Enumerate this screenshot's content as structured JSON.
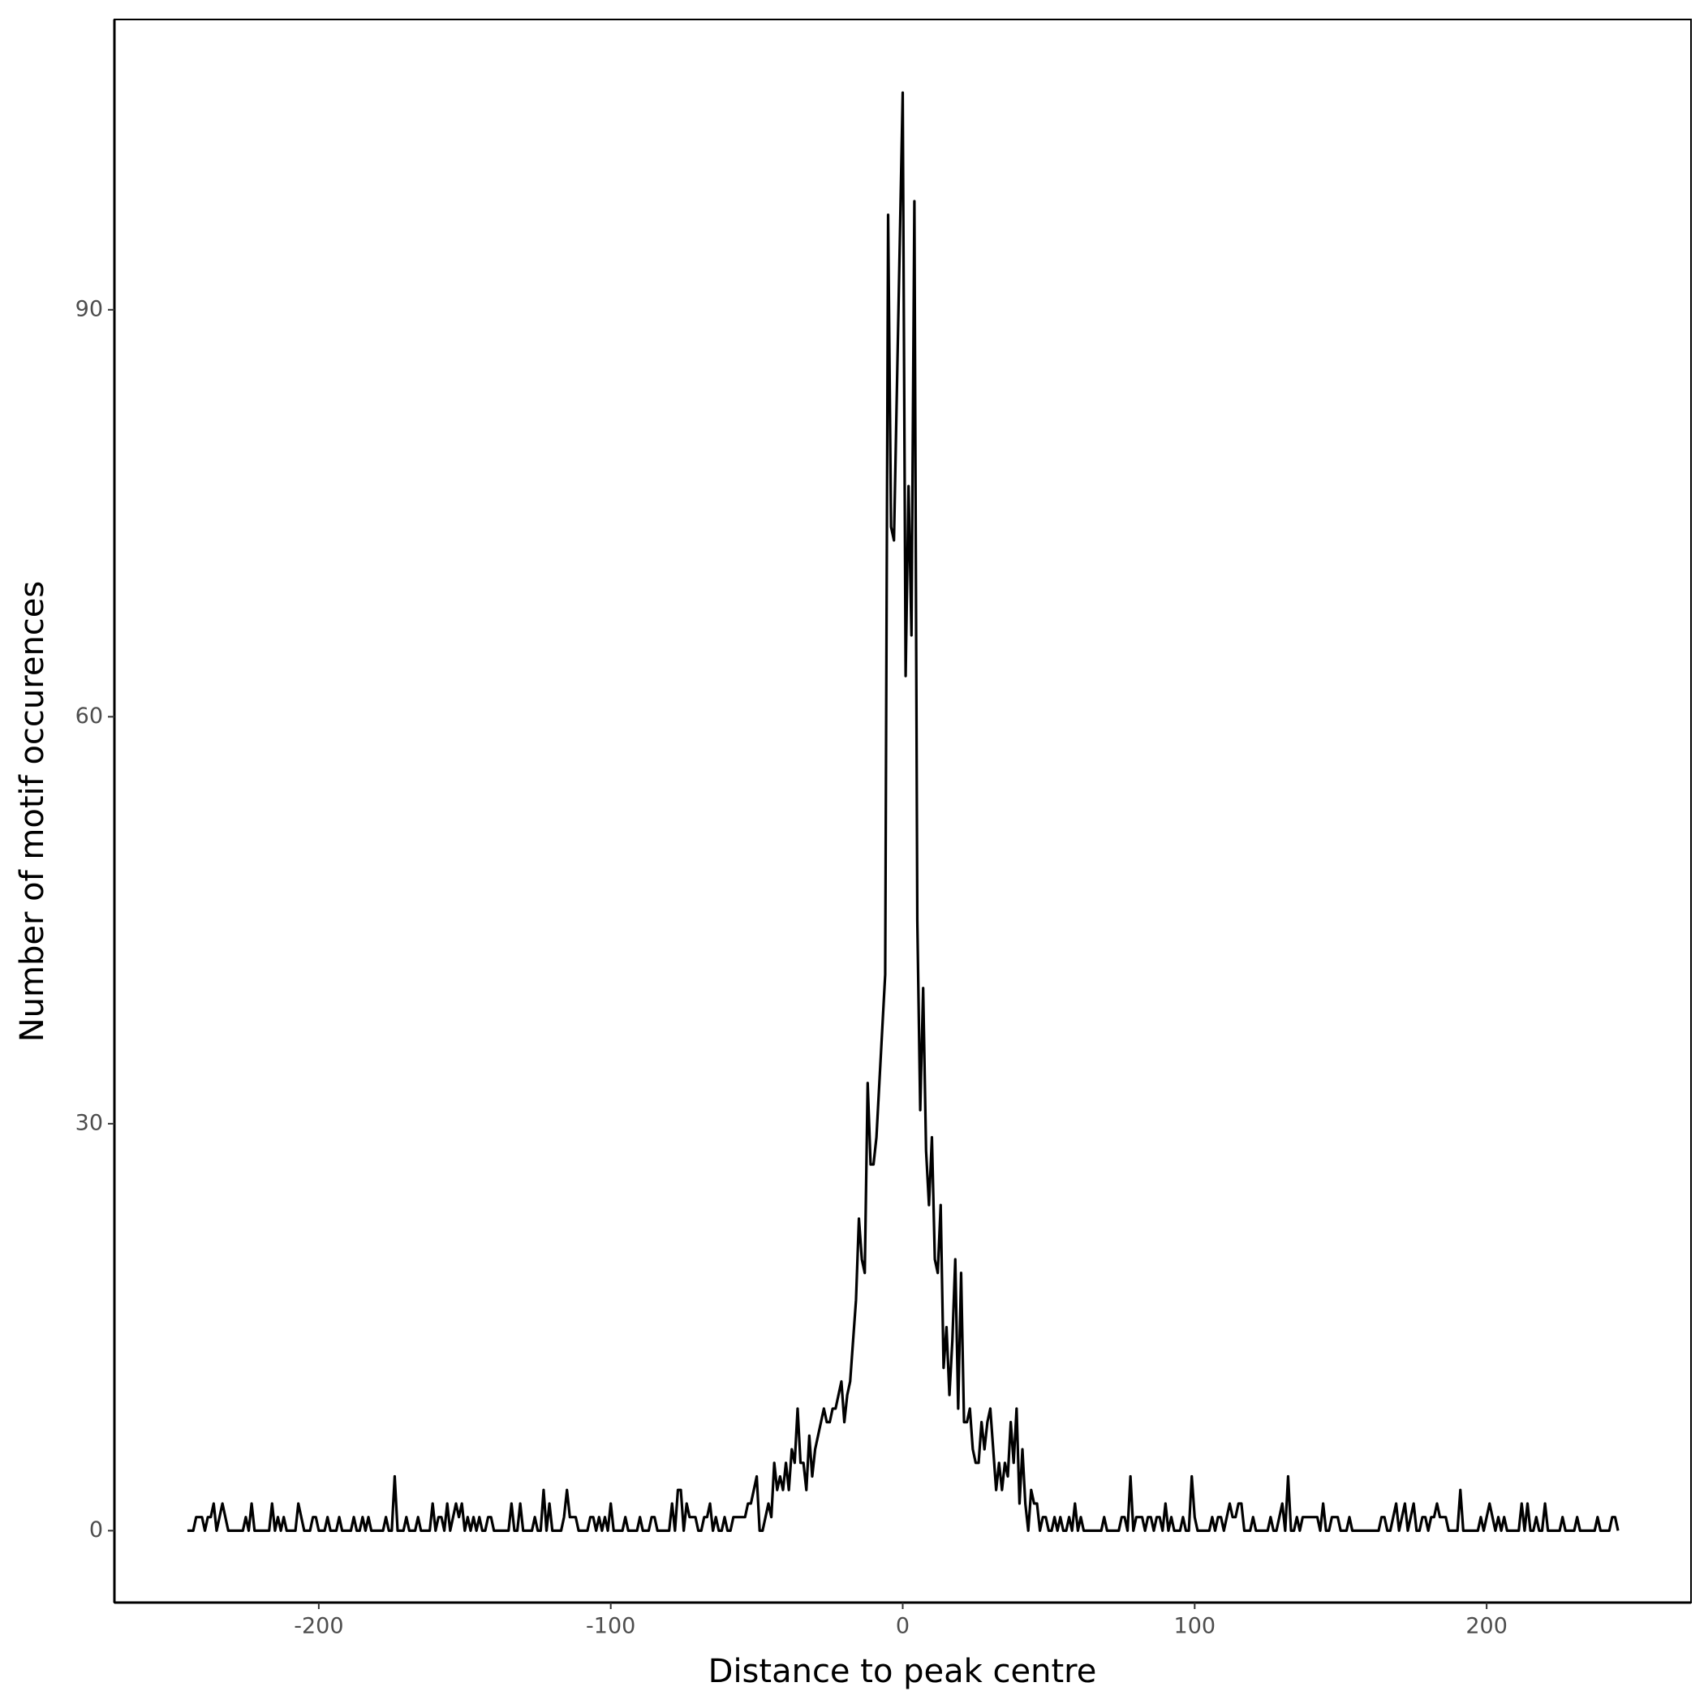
{
  "chart_data": {
    "type": "line",
    "x_label": "Distance to peak centre",
    "y_label": "Number of motif occurences",
    "xlim": [
      -270,
      270
    ],
    "ylim": [
      -5.3,
      111.4
    ],
    "xticks": [
      -200,
      -100,
      0,
      100,
      200
    ],
    "yticks": [
      0,
      30,
      60,
      90
    ],
    "series": [
      {
        "color": "#000000",
        "x": [
          -245,
          -244,
          -243,
          -242,
          -241,
          -240,
          -239,
          -238,
          -237,
          -236,
          -235,
          -234,
          -233,
          -232,
          -231,
          -230,
          -229,
          -228,
          -227,
          -226,
          -225,
          -224,
          -223,
          -222,
          -221,
          -220,
          -219,
          -218,
          -217,
          -216,
          -215,
          -214,
          -213,
          -212,
          -211,
          -210,
          -209,
          -208,
          -207,
          -206,
          -205,
          -204,
          -203,
          -202,
          -201,
          -200,
          -199,
          -198,
          -197,
          -196,
          -195,
          -194,
          -193,
          -192,
          -191,
          -190,
          -189,
          -188,
          -187,
          -186,
          -185,
          -184,
          -183,
          -182,
          -181,
          -180,
          -179,
          -178,
          -177,
          -176,
          -175,
          -174,
          -173,
          -172,
          -171,
          -170,
          -169,
          -168,
          -167,
          -166,
          -165,
          -164,
          -163,
          -162,
          -161,
          -160,
          -159,
          -158,
          -157,
          -156,
          -155,
          -154,
          -153,
          -152,
          -151,
          -150,
          -149,
          -148,
          -147,
          -146,
          -145,
          -144,
          -143,
          -142,
          -141,
          -140,
          -139,
          -138,
          -137,
          -136,
          -135,
          -134,
          -133,
          -132,
          -131,
          -130,
          -129,
          -128,
          -127,
          -126,
          -125,
          -124,
          -123,
          -122,
          -121,
          -120,
          -119,
          -118,
          -117,
          -116,
          -115,
          -114,
          -113,
          -112,
          -111,
          -110,
          -109,
          -108,
          -107,
          -106,
          -105,
          -104,
          -103,
          -102,
          -101,
          -100,
          -99,
          -98,
          -97,
          -96,
          -95,
          -94,
          -93,
          -92,
          -91,
          -90,
          -89,
          -88,
          -87,
          -86,
          -85,
          -84,
          -83,
          -82,
          -81,
          -80,
          -79,
          -78,
          -77,
          -76,
          -75,
          -74,
          -73,
          -72,
          -71,
          -70,
          -69,
          -68,
          -67,
          -66,
          -65,
          -64,
          -63,
          -62,
          -61,
          -60,
          -59,
          -58,
          -57,
          -56,
          -55,
          -54,
          -53,
          -52,
          -51,
          -50,
          -49,
          -48,
          -47,
          -46,
          -45,
          -44,
          -43,
          -42,
          -41,
          -40,
          -39,
          -38,
          -37,
          -36,
          -35,
          -34,
          -33,
          -32,
          -31,
          -30,
          -29,
          -28,
          -27,
          -26,
          -25,
          -24,
          -23,
          -22,
          -21,
          -20,
          -19,
          -18,
          -17,
          -16,
          -15,
          -14,
          -13,
          -12,
          -11,
          -10,
          -9,
          -8,
          -7,
          -6,
          -5,
          -4,
          -3,
          -2,
          -1,
          0,
          1,
          2,
          3,
          4,
          5,
          6,
          7,
          8,
          9,
          10,
          11,
          12,
          13,
          14,
          15,
          16,
          17,
          18,
          19,
          20,
          21,
          22,
          23,
          24,
          25,
          26,
          27,
          28,
          29,
          30,
          31,
          32,
          33,
          34,
          35,
          36,
          37,
          38,
          39,
          40,
          41,
          42,
          43,
          44,
          45,
          46,
          47,
          48,
          49,
          50,
          51,
          52,
          53,
          54,
          55,
          56,
          57,
          58,
          59,
          60,
          61,
          62,
          63,
          64,
          65,
          66,
          67,
          68,
          69,
          70,
          71,
          72,
          73,
          74,
          75,
          76,
          77,
          78,
          79,
          80,
          81,
          82,
          83,
          84,
          85,
          86,
          87,
          88,
          89,
          90,
          91,
          92,
          93,
          94,
          95,
          96,
          97,
          98,
          99,
          100,
          101,
          102,
          103,
          104,
          105,
          106,
          107,
          108,
          109,
          110,
          111,
          112,
          113,
          114,
          115,
          116,
          117,
          118,
          119,
          120,
          121,
          122,
          123,
          124,
          125,
          126,
          127,
          128,
          129,
          130,
          131,
          132,
          133,
          134,
          135,
          136,
          137,
          138,
          139,
          140,
          141,
          142,
          143,
          144,
          145,
          146,
          147,
          148,
          149,
          150,
          151,
          152,
          153,
          154,
          155,
          156,
          157,
          158,
          159,
          160,
          161,
          162,
          163,
          164,
          165,
          166,
          167,
          168,
          169,
          170,
          171,
          172,
          173,
          174,
          175,
          176,
          177,
          178,
          179,
          180,
          181,
          182,
          183,
          184,
          185,
          186,
          187,
          188,
          189,
          190,
          191,
          192,
          193,
          194,
          195,
          196,
          197,
          198,
          199,
          200,
          201,
          202,
          203,
          204,
          205,
          206,
          207,
          208,
          209,
          210,
          211,
          212,
          213,
          214,
          215,
          216,
          217,
          218,
          219,
          220,
          221,
          222,
          223,
          224,
          225,
          226,
          227,
          228,
          229,
          230,
          231,
          232,
          233,
          234,
          235,
          236,
          237,
          238,
          239,
          240,
          241,
          242,
          243,
          244,
          245
        ],
        "values": [
          0,
          0,
          0,
          1,
          1,
          1,
          0,
          1,
          1,
          2,
          0,
          1,
          2,
          1,
          0,
          0,
          0,
          0,
          0,
          0,
          1,
          0,
          2,
          0,
          0,
          0,
          0,
          0,
          0,
          2,
          0,
          1,
          0,
          1,
          0,
          0,
          0,
          0,
          2,
          1,
          0,
          0,
          0,
          1,
          1,
          0,
          0,
          0,
          1,
          0,
          0,
          0,
          1,
          0,
          0,
          0,
          0,
          1,
          0,
          0,
          1,
          0,
          1,
          0,
          0,
          0,
          0,
          0,
          1,
          0,
          0,
          4,
          0,
          0,
          0,
          1,
          0,
          0,
          0,
          1,
          0,
          0,
          0,
          0,
          2,
          0,
          1,
          1,
          0,
          2,
          0,
          1,
          2,
          1,
          2,
          0,
          1,
          0,
          1,
          0,
          1,
          0,
          0,
          1,
          1,
          0,
          0,
          0,
          0,
          0,
          0,
          2,
          0,
          0,
          2,
          0,
          0,
          0,
          0,
          1,
          0,
          0,
          3,
          0,
          2,
          0,
          0,
          0,
          0,
          1,
          3,
          1,
          1,
          1,
          0,
          0,
          0,
          0,
          1,
          1,
          0,
          1,
          0,
          1,
          0,
          2,
          0,
          0,
          0,
          0,
          1,
          0,
          0,
          0,
          0,
          1,
          0,
          0,
          0,
          1,
          1,
          0,
          0,
          0,
          0,
          0,
          2,
          0,
          3,
          3,
          0,
          2,
          1,
          1,
          1,
          0,
          0,
          1,
          1,
          2,
          0,
          1,
          0,
          0,
          1,
          0,
          0,
          1,
          1,
          1,
          1,
          1,
          2,
          2,
          3,
          4,
          0,
          0,
          1,
          2,
          1,
          5,
          3,
          4,
          3,
          5,
          3,
          6,
          5,
          9,
          5,
          5,
          3,
          7,
          4,
          6,
          7,
          8,
          9,
          8,
          8,
          9,
          9,
          10,
          11,
          8,
          10,
          11,
          14,
          17,
          23,
          20,
          19,
          33,
          27,
          27,
          29,
          33,
          37,
          41,
          97,
          74,
          73,
          84,
          95,
          106,
          63,
          77,
          66,
          98,
          45,
          31,
          40,
          28,
          24,
          29,
          20,
          19,
          24,
          12,
          15,
          10,
          14,
          20,
          9,
          19,
          8,
          8,
          9,
          6,
          5,
          5,
          8,
          6,
          8,
          9,
          6,
          3,
          5,
          3,
          5,
          4,
          8,
          5,
          9,
          2,
          6,
          2,
          0,
          3,
          2,
          2,
          0,
          1,
          1,
          0,
          0,
          1,
          0,
          1,
          0,
          0,
          1,
          0,
          2,
          0,
          1,
          0,
          0,
          0,
          0,
          0,
          0,
          0,
          1,
          0,
          0,
          0,
          0,
          0,
          1,
          1,
          0,
          4,
          0,
          1,
          1,
          1,
          0,
          1,
          1,
          0,
          1,
          1,
          0,
          2,
          0,
          1,
          0,
          0,
          0,
          1,
          0,
          0,
          4,
          1,
          0,
          0,
          0,
          0,
          0,
          1,
          0,
          1,
          1,
          0,
          1,
          2,
          1,
          1,
          2,
          2,
          0,
          0,
          0,
          1,
          0,
          0,
          0,
          0,
          0,
          1,
          0,
          0,
          1,
          2,
          0,
          4,
          0,
          0,
          1,
          0,
          1,
          1,
          1,
          1,
          1,
          1,
          0,
          2,
          0,
          0,
          1,
          1,
          1,
          0,
          0,
          0,
          1,
          0,
          0,
          0,
          0,
          0,
          0,
          0,
          0,
          0,
          0,
          1,
          1,
          0,
          0,
          1,
          2,
          0,
          1,
          2,
          0,
          1,
          2,
          0,
          0,
          1,
          1,
          0,
          1,
          1,
          2,
          1,
          1,
          1,
          0,
          0,
          0,
          0,
          3,
          0,
          0,
          0,
          0,
          0,
          0,
          1,
          0,
          1,
          2,
          1,
          0,
          1,
          0,
          1,
          0,
          0,
          0,
          0,
          0,
          2,
          0,
          2,
          0,
          0,
          1,
          0,
          0,
          2,
          0,
          0,
          0,
          0,
          0,
          1,
          0,
          0,
          0,
          0,
          1,
          0,
          0,
          0,
          0,
          0,
          0,
          1,
          0,
          0,
          0,
          0,
          1,
          1,
          0
        ]
      }
    ]
  }
}
